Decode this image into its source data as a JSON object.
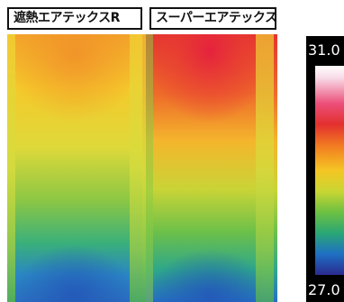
{
  "labels": {
    "left": "遮熱エアテックスR",
    "right": "スーパーエアテックス"
  },
  "temperature_scale": {
    "max": "31.0",
    "min": "27.0"
  },
  "colors": {
    "hot": "#e3302e",
    "warm": "#f5c623",
    "mid": "#6dc041",
    "cool": "#1f6fc4"
  }
}
